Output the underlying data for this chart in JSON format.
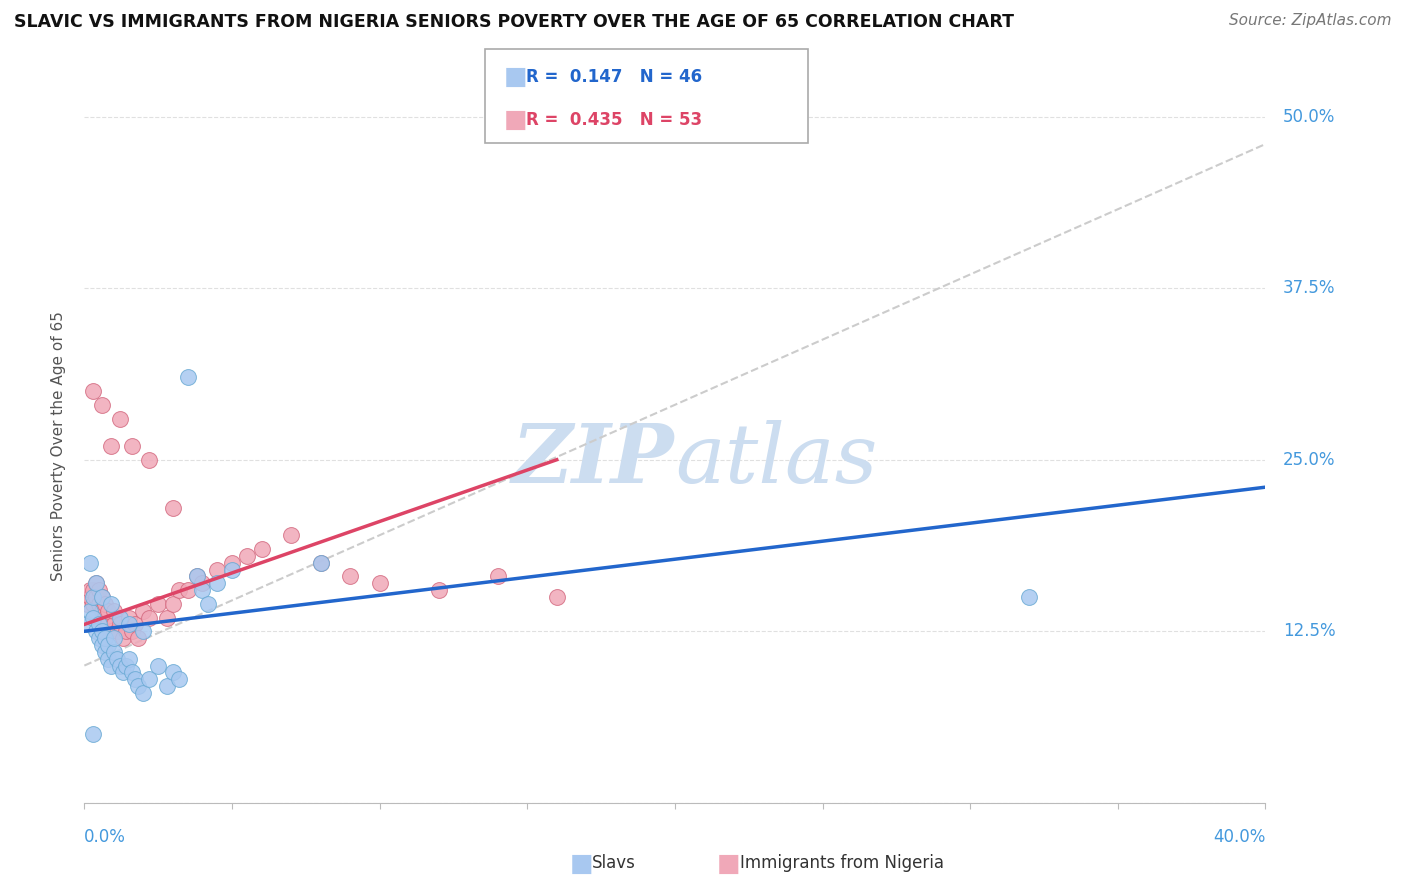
{
  "title": "SLAVIC VS IMMIGRANTS FROM NIGERIA SENIORS POVERTY OVER THE AGE OF 65 CORRELATION CHART",
  "source": "Source: ZipAtlas.com",
  "legend_slavs": "Slavs",
  "legend_nigeria": "Immigrants from Nigeria",
  "R_slavs": "0.147",
  "N_slavs": "46",
  "R_nigeria": "0.435",
  "N_nigeria": "53",
  "xlim": [
    0.0,
    0.4
  ],
  "ylim": [
    0.0,
    0.52
  ],
  "slavs_color": "#a8c8f0",
  "slavs_edge": "#6aaad4",
  "nigeria_color": "#f0a8b8",
  "nigeria_edge": "#d46a80",
  "trend_slavs_color": "#2266cc",
  "trend_nigeria_color": "#dd4466",
  "trend_gray_color": "#cccccc",
  "watermark_color": "#ccddf0",
  "background_color": "#ffffff",
  "grid_color": "#dddddd",
  "axis_label_color": "#4499dd",
  "ylabel_label": "Seniors Poverty Over the Age of 65",
  "slavs_x": [
    0.001,
    0.002,
    0.003,
    0.003,
    0.004,
    0.005,
    0.005,
    0.006,
    0.006,
    0.007,
    0.007,
    0.008,
    0.008,
    0.009,
    0.01,
    0.01,
    0.011,
    0.012,
    0.013,
    0.014,
    0.015,
    0.016,
    0.017,
    0.018,
    0.02,
    0.022,
    0.025,
    0.028,
    0.03,
    0.032,
    0.035,
    0.038,
    0.04,
    0.042,
    0.045,
    0.05,
    0.002,
    0.004,
    0.006,
    0.009,
    0.012,
    0.015,
    0.02,
    0.08,
    0.32,
    0.003
  ],
  "slavs_y": [
    0.13,
    0.14,
    0.135,
    0.15,
    0.125,
    0.12,
    0.13,
    0.115,
    0.125,
    0.11,
    0.12,
    0.105,
    0.115,
    0.1,
    0.11,
    0.12,
    0.105,
    0.1,
    0.095,
    0.1,
    0.105,
    0.095,
    0.09,
    0.085,
    0.08,
    0.09,
    0.1,
    0.085,
    0.095,
    0.09,
    0.31,
    0.165,
    0.155,
    0.145,
    0.16,
    0.17,
    0.175,
    0.16,
    0.15,
    0.145,
    0.135,
    0.13,
    0.125,
    0.175,
    0.15,
    0.05
  ],
  "nigeria_x": [
    0.001,
    0.002,
    0.002,
    0.003,
    0.003,
    0.004,
    0.004,
    0.005,
    0.005,
    0.006,
    0.006,
    0.007,
    0.007,
    0.008,
    0.008,
    0.009,
    0.01,
    0.01,
    0.011,
    0.012,
    0.013,
    0.014,
    0.015,
    0.016,
    0.017,
    0.018,
    0.02,
    0.022,
    0.025,
    0.028,
    0.03,
    0.032,
    0.035,
    0.038,
    0.04,
    0.045,
    0.05,
    0.055,
    0.06,
    0.07,
    0.08,
    0.09,
    0.1,
    0.12,
    0.14,
    0.16,
    0.003,
    0.006,
    0.009,
    0.012,
    0.016,
    0.022,
    0.03
  ],
  "nigeria_y": [
    0.145,
    0.15,
    0.155,
    0.145,
    0.155,
    0.15,
    0.16,
    0.145,
    0.155,
    0.14,
    0.15,
    0.135,
    0.145,
    0.13,
    0.14,
    0.125,
    0.13,
    0.14,
    0.125,
    0.13,
    0.12,
    0.125,
    0.135,
    0.125,
    0.13,
    0.12,
    0.14,
    0.135,
    0.145,
    0.135,
    0.145,
    0.155,
    0.155,
    0.165,
    0.16,
    0.17,
    0.175,
    0.18,
    0.185,
    0.195,
    0.175,
    0.165,
    0.16,
    0.155,
    0.165,
    0.15,
    0.3,
    0.29,
    0.26,
    0.28,
    0.26,
    0.25,
    0.215
  ],
  "trend_slavs_x0": 0.0,
  "trend_slavs_y0": 0.125,
  "trend_slavs_x1": 0.4,
  "trend_slavs_y1": 0.23,
  "trend_nigeria_x0": 0.0,
  "trend_nigeria_y0": 0.13,
  "trend_nigeria_x1": 0.16,
  "trend_nigeria_y1": 0.25,
  "trend_gray_x0": 0.0,
  "trend_gray_y0": 0.1,
  "trend_gray_x1": 0.4,
  "trend_gray_y1": 0.48
}
